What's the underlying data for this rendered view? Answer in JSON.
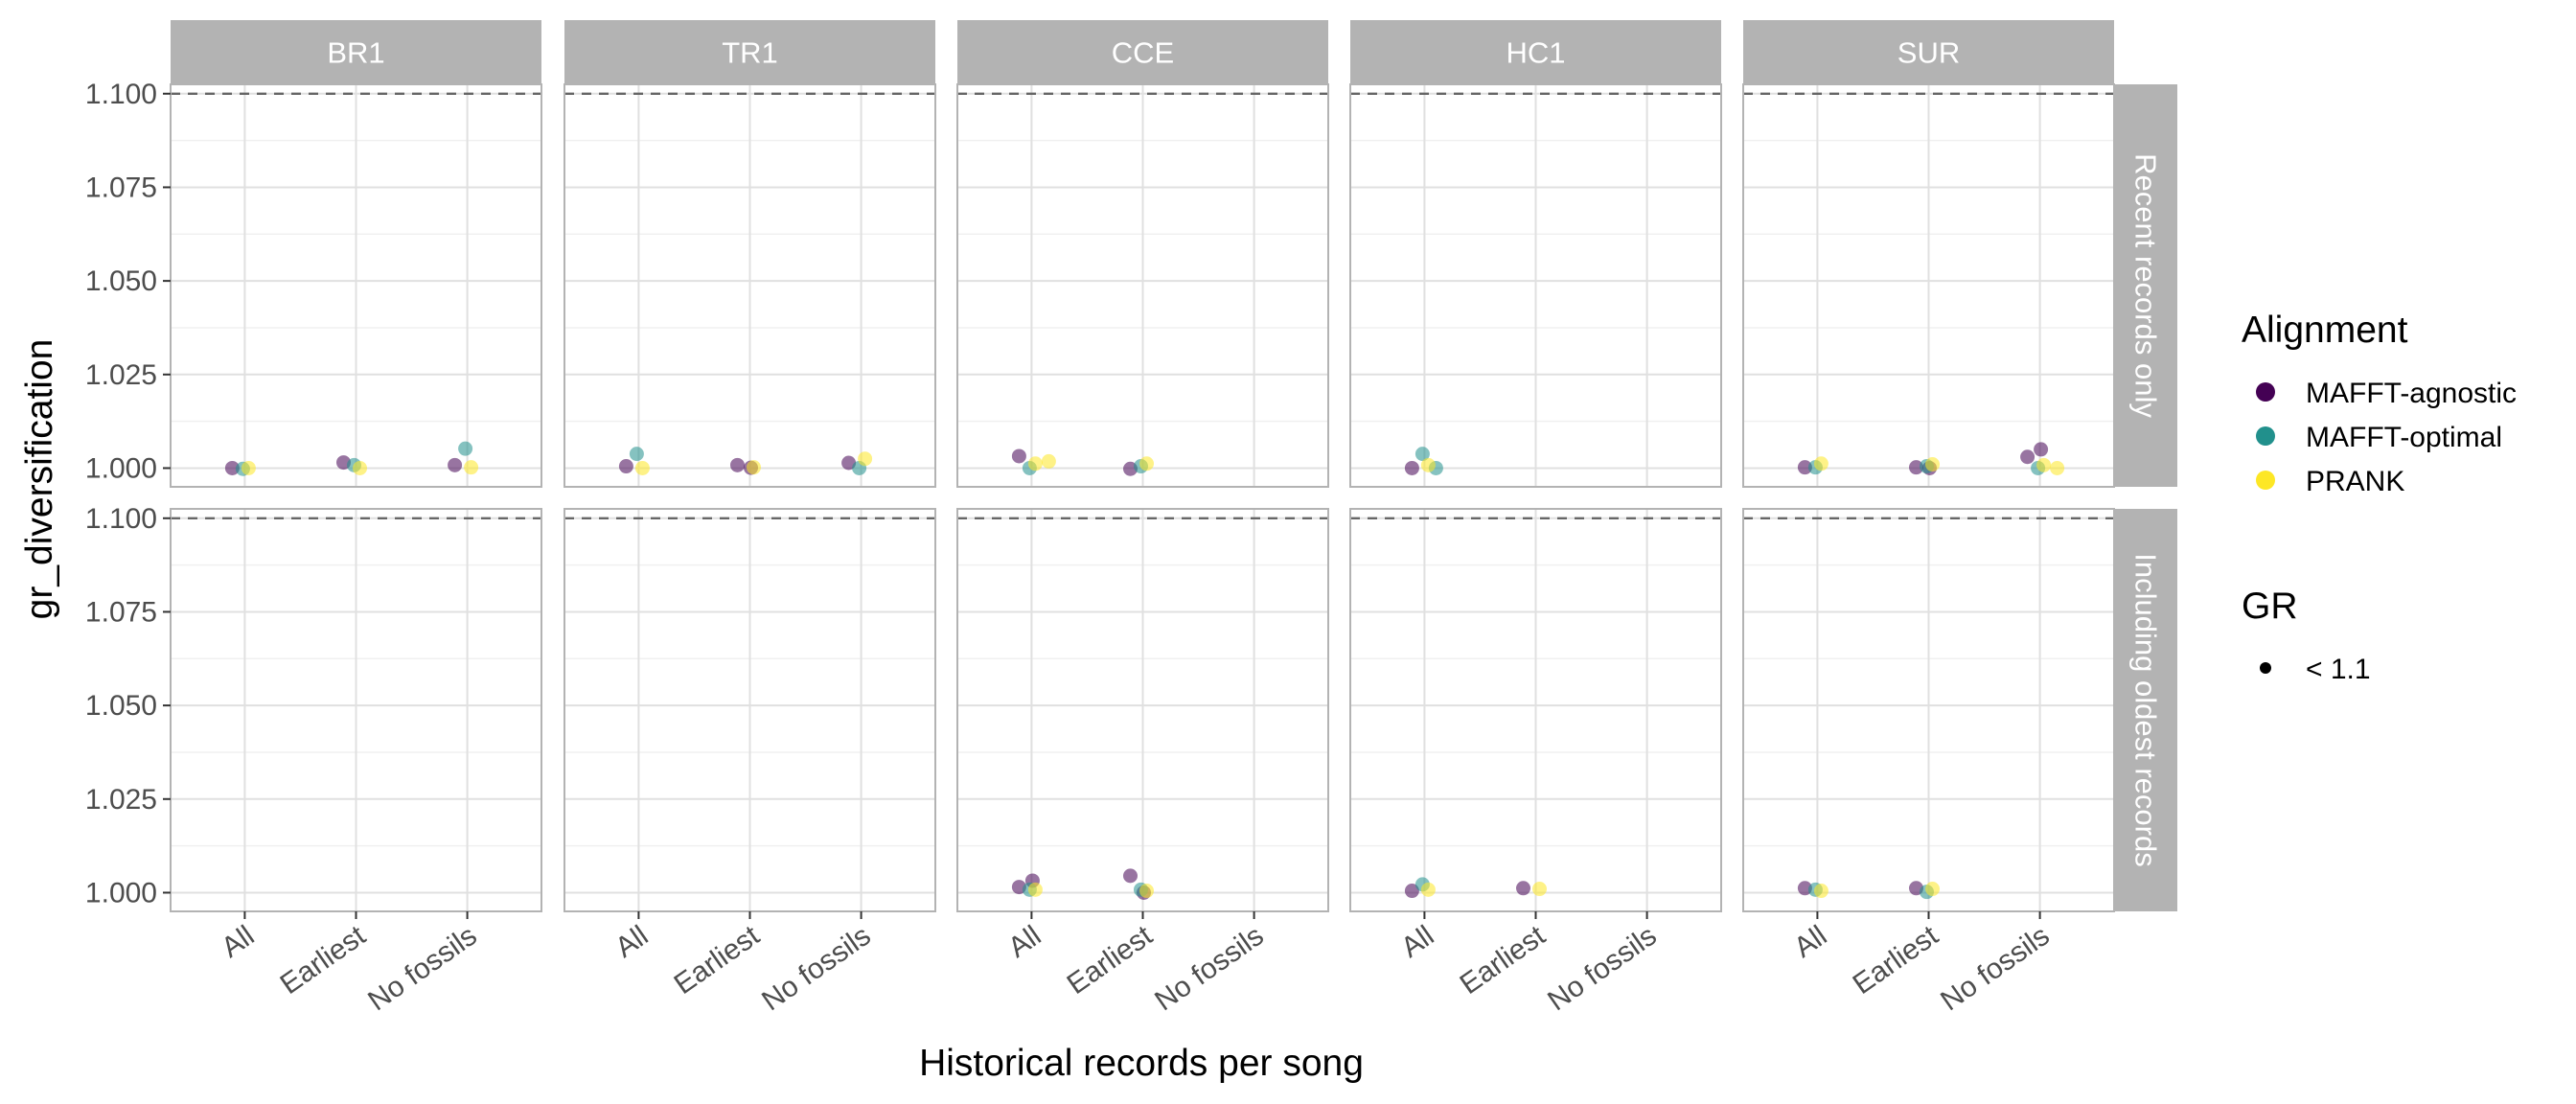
{
  "chart_data": {
    "type": "scatter",
    "facet_columns": [
      "BR1",
      "TR1",
      "CCE",
      "HC1",
      "SUR"
    ],
    "facet_rows": [
      "Recent records only",
      "Including oldest records"
    ],
    "categories": [
      "All",
      "Earliest",
      "No fossils"
    ],
    "xlabel": "Historical records per song",
    "ylabel": "gr_diversification",
    "ylim": [
      0.995,
      1.1025
    ],
    "y_ticks": [
      "1.000",
      "1.025",
      "1.050",
      "1.075",
      "1.100"
    ],
    "threshold": 1.1,
    "grid": true,
    "legend_position": "right",
    "legends": {
      "alignment": {
        "title": "Alignment",
        "items": [
          {
            "name": "MAFFT-agnostic",
            "color": "#440154"
          },
          {
            "name": "MAFFT-optimal",
            "color": "#21908C"
          },
          {
            "name": "PRANK",
            "color": "#FDE725"
          }
        ]
      },
      "gr": {
        "title": "GR",
        "items": [
          {
            "name": "< 1.1",
            "color": "#000000"
          }
        ]
      }
    },
    "series": [
      {
        "name": "MAFFT-agnostic",
        "points": [
          {
            "row": 0,
            "col": 0,
            "cat": "All",
            "y": 1.0
          },
          {
            "row": 0,
            "col": 0,
            "cat": "Earliest",
            "y": 1.0015
          },
          {
            "row": 0,
            "col": 0,
            "cat": "No fossils",
            "y": 1.0008
          },
          {
            "row": 0,
            "col": 1,
            "cat": "All",
            "y": 1.0005
          },
          {
            "row": 0,
            "col": 1,
            "cat": "Earliest",
            "y": 1.0008
          },
          {
            "row": 0,
            "col": 1,
            "cat": "Earliest",
            "y": 1.0001
          },
          {
            "row": 0,
            "col": 1,
            "cat": "No fossils",
            "y": 1.0014
          },
          {
            "row": 0,
            "col": 2,
            "cat": "All",
            "y": 1.0032
          },
          {
            "row": 0,
            "col": 2,
            "cat": "Earliest",
            "y": 0.9998
          },
          {
            "row": 0,
            "col": 3,
            "cat": "All",
            "y": 1.0
          },
          {
            "row": 0,
            "col": 4,
            "cat": "All",
            "y": 1.0002
          },
          {
            "row": 0,
            "col": 4,
            "cat": "Earliest",
            "y": 1.0002
          },
          {
            "row": 0,
            "col": 4,
            "cat": "Earliest",
            "y": 1.0
          },
          {
            "row": 0,
            "col": 4,
            "cat": "No fossils",
            "y": 1.003
          },
          {
            "row": 0,
            "col": 4,
            "cat": "No fossils",
            "y": 1.005
          },
          {
            "row": 1,
            "col": 2,
            "cat": "All",
            "y": 1.0015
          },
          {
            "row": 1,
            "col": 2,
            "cat": "All",
            "y": 1.0032
          },
          {
            "row": 1,
            "col": 2,
            "cat": "Earliest",
            "y": 1.0045
          },
          {
            "row": 1,
            "col": 2,
            "cat": "Earliest",
            "y": 1.0
          },
          {
            "row": 1,
            "col": 3,
            "cat": "All",
            "y": 1.0005
          },
          {
            "row": 1,
            "col": 3,
            "cat": "Earliest",
            "y": 1.0012
          },
          {
            "row": 1,
            "col": 4,
            "cat": "All",
            "y": 1.0012
          },
          {
            "row": 1,
            "col": 4,
            "cat": "Earliest",
            "y": 1.0012
          }
        ]
      },
      {
        "name": "MAFFT-optimal",
        "points": [
          {
            "row": 0,
            "col": 0,
            "cat": "All",
            "y": 0.9998
          },
          {
            "row": 0,
            "col": 0,
            "cat": "Earliest",
            "y": 1.0008
          },
          {
            "row": 0,
            "col": 0,
            "cat": "No fossils",
            "y": 1.0052
          },
          {
            "row": 0,
            "col": 1,
            "cat": "All",
            "y": 1.0038
          },
          {
            "row": 0,
            "col": 1,
            "cat": "No fossils",
            "y": 1.0
          },
          {
            "row": 0,
            "col": 2,
            "cat": "All",
            "y": 1.0
          },
          {
            "row": 0,
            "col": 2,
            "cat": "Earliest",
            "y": 1.0005
          },
          {
            "row": 0,
            "col": 3,
            "cat": "All",
            "y": 1.0038
          },
          {
            "row": 0,
            "col": 3,
            "cat": "All",
            "y": 1.0
          },
          {
            "row": 0,
            "col": 4,
            "cat": "All",
            "y": 1.0002
          },
          {
            "row": 0,
            "col": 4,
            "cat": "Earliest",
            "y": 1.0005
          },
          {
            "row": 0,
            "col": 4,
            "cat": "No fossils",
            "y": 1.0
          },
          {
            "row": 1,
            "col": 2,
            "cat": "All",
            "y": 1.0008
          },
          {
            "row": 1,
            "col": 2,
            "cat": "Earliest",
            "y": 1.0008
          },
          {
            "row": 1,
            "col": 3,
            "cat": "All",
            "y": 1.0022
          },
          {
            "row": 1,
            "col": 4,
            "cat": "All",
            "y": 1.0008
          },
          {
            "row": 1,
            "col": 4,
            "cat": "Earliest",
            "y": 1.0002
          }
        ]
      },
      {
        "name": "PRANK",
        "points": [
          {
            "row": 0,
            "col": 0,
            "cat": "All",
            "y": 1.0
          },
          {
            "row": 0,
            "col": 0,
            "cat": "Earliest",
            "y": 1.0
          },
          {
            "row": 0,
            "col": 0,
            "cat": "No fossils",
            "y": 1.0002
          },
          {
            "row": 0,
            "col": 1,
            "cat": "All",
            "y": 1.0
          },
          {
            "row": 0,
            "col": 1,
            "cat": "Earliest",
            "y": 1.0002
          },
          {
            "row": 0,
            "col": 1,
            "cat": "No fossils",
            "y": 1.0025
          },
          {
            "row": 0,
            "col": 2,
            "cat": "All",
            "y": 1.0012
          },
          {
            "row": 0,
            "col": 2,
            "cat": "All",
            "y": 1.0018
          },
          {
            "row": 0,
            "col": 2,
            "cat": "Earliest",
            "y": 1.0012
          },
          {
            "row": 0,
            "col": 3,
            "cat": "All",
            "y": 1.0008
          },
          {
            "row": 0,
            "col": 4,
            "cat": "All",
            "y": 1.0012
          },
          {
            "row": 0,
            "col": 4,
            "cat": "Earliest",
            "y": 1.001
          },
          {
            "row": 0,
            "col": 4,
            "cat": "No fossils",
            "y": 1.0008
          },
          {
            "row": 0,
            "col": 4,
            "cat": "No fossils",
            "y": 1.0
          },
          {
            "row": 1,
            "col": 2,
            "cat": "All",
            "y": 1.0008
          },
          {
            "row": 1,
            "col": 2,
            "cat": "Earliest",
            "y": 1.0005
          },
          {
            "row": 1,
            "col": 3,
            "cat": "All",
            "y": 1.0008
          },
          {
            "row": 1,
            "col": 3,
            "cat": "Earliest",
            "y": 1.001
          },
          {
            "row": 1,
            "col": 4,
            "cat": "All",
            "y": 1.0005
          },
          {
            "row": 1,
            "col": 4,
            "cat": "Earliest",
            "y": 1.001
          }
        ]
      }
    ]
  }
}
